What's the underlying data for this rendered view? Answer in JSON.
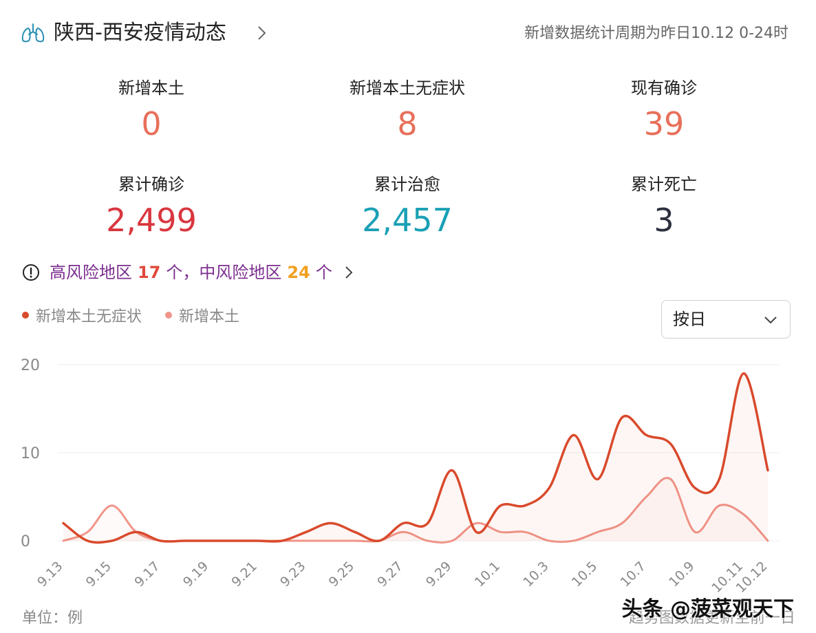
{
  "header": {
    "title": "陕西-西安疫情动态",
    "period": "新增数据统计周期为昨日10.12 0-24时"
  },
  "stats": [
    {
      "label": "新增本土",
      "value": "0",
      "color": "#e8705a"
    },
    {
      "label": "新增本土无症状",
      "value": "8",
      "color": "#e8705a"
    },
    {
      "label": "现有确诊",
      "value": "39",
      "color": "#e8705a"
    },
    {
      "label": "累计确诊",
      "value": "2,499",
      "color": "#d9363e"
    },
    {
      "label": "累计治愈",
      "value": "2,457",
      "color": "#1aa0b5"
    },
    {
      "label": "累计死亡",
      "value": "3",
      "color": "#2b2f3d"
    }
  ],
  "risk": {
    "high_label": "高风险地区",
    "high_count": "17",
    "high_unit": "个，",
    "mid_label": "中风险地区",
    "mid_count": "24",
    "mid_unit": "个"
  },
  "legend": [
    {
      "name": "新增本土无症状",
      "color": "#d94a2c"
    },
    {
      "name": "新增本土",
      "color": "#f0958a"
    }
  ],
  "select": {
    "value": "按日"
  },
  "chart_data": {
    "type": "line",
    "x": [
      "9.13",
      "9.14",
      "9.15",
      "9.16",
      "9.17",
      "9.18",
      "9.19",
      "9.20",
      "9.21",
      "9.22",
      "9.23",
      "9.24",
      "9.25",
      "9.26",
      "9.27",
      "9.28",
      "9.29",
      "9.30",
      "10.1",
      "10.2",
      "10.3",
      "10.4",
      "10.5",
      "10.6",
      "10.7",
      "10.8",
      "10.9",
      "10.10",
      "10.11",
      "10.12"
    ],
    "xticks": [
      "9.13",
      "9.15",
      "9.17",
      "9.19",
      "9.21",
      "9.23",
      "9.25",
      "9.27",
      "9.29",
      "10.1",
      "10.3",
      "10.5",
      "10.7",
      "10.9",
      "10.11",
      "10.12"
    ],
    "series": [
      {
        "name": "新增本土无症状",
        "color": "#d94a2c",
        "values": [
          2,
          0,
          0,
          1,
          0,
          0,
          0,
          0,
          0,
          0,
          1,
          2,
          1,
          0,
          2,
          2,
          8,
          1,
          4,
          4,
          6,
          12,
          7,
          14,
          12,
          11,
          6,
          7,
          19,
          8
        ]
      },
      {
        "name": "新增本土",
        "color": "#f0958a",
        "values": [
          0,
          1,
          4,
          1,
          0,
          0,
          0,
          0,
          0,
          0,
          0,
          0,
          0,
          0,
          1,
          0,
          0,
          2,
          1,
          1,
          0,
          0,
          1,
          2,
          5,
          7,
          1,
          4,
          3,
          0
        ]
      }
    ],
    "ylim": [
      0,
      20
    ],
    "yticks": [
      0,
      10,
      20
    ],
    "grid": true
  },
  "footer": {
    "unit": "单位：例",
    "note": "趋势图数据更新至前一日"
  },
  "watermark": "头条 @菠菜观天下"
}
